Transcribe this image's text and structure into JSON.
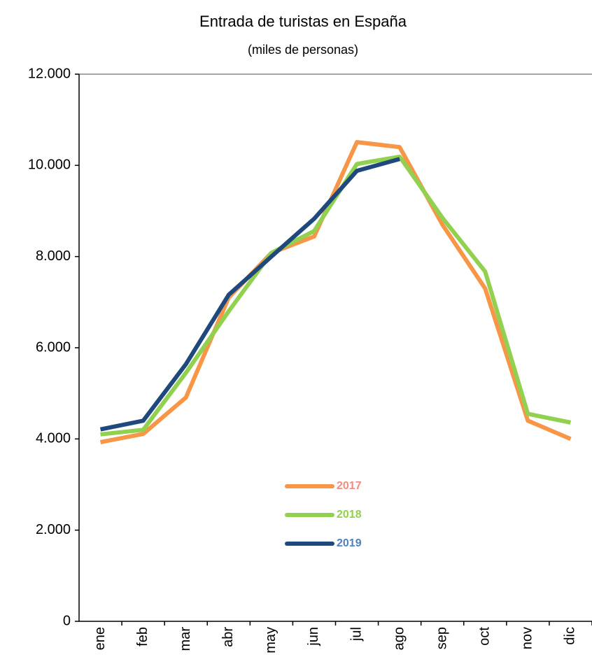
{
  "chart_data": {
    "type": "line",
    "title": "Entrada de turistas en España",
    "subtitle": "(miles de personas)",
    "categories": [
      "ene",
      "feb",
      "mar",
      "abr",
      "may",
      "jun",
      "jul",
      "ago",
      "sep",
      "oct",
      "nov",
      "dic"
    ],
    "series": [
      {
        "name": "2017",
        "color": "#f79646",
        "label_color": "#f28b82",
        "values": [
          3930,
          4110,
          4910,
          7100,
          8080,
          8440,
          10510,
          10400,
          8700,
          7300,
          4400,
          4000
        ]
      },
      {
        "name": "2018",
        "color": "#92d050",
        "label_color": "#92d050",
        "values": [
          4100,
          4200,
          5450,
          6800,
          8080,
          8560,
          10030,
          10190,
          8850,
          7670,
          4550,
          4360
        ]
      },
      {
        "name": "2019",
        "color": "#1f497d",
        "label_color": "#4f81bd",
        "values": [
          4210,
          4400,
          5640,
          7160,
          8000,
          8830,
          9880,
          10140,
          null,
          null,
          null,
          null
        ]
      }
    ],
    "ylim": [
      0,
      12000
    ],
    "yticks": [
      0,
      {
        "value": 2000,
        "label": "2.000"
      },
      {
        "value": 4000,
        "label": "4.000"
      },
      {
        "value": 6000,
        "label": "6.000"
      },
      {
        "value": 8000,
        "label": "8.000"
      },
      {
        "value": 10000,
        "label": "10.000"
      },
      {
        "value": 12000,
        "label": "12.000"
      }
    ],
    "grid": false
  }
}
